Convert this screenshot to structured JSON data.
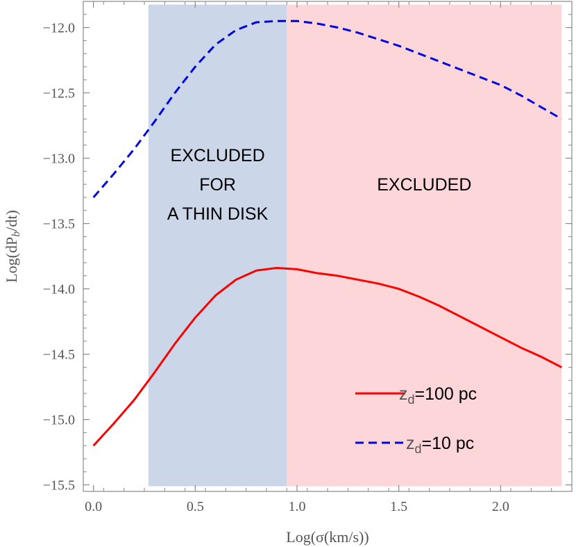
{
  "chart_data": {
    "type": "line",
    "xlabel": "Log(σ(km/s))",
    "ylabel": "Log(dP_b/dt)",
    "xlim": [
      -0.05,
      2.35
    ],
    "ylim": [
      -15.55,
      -11.8
    ],
    "xticks": [
      0.0,
      0.5,
      1.0,
      1.5,
      2.0
    ],
    "xtick_labels": [
      "0.0",
      "0.5",
      "1.0",
      "1.5",
      "2.0"
    ],
    "yticks": [
      -12.0,
      -12.5,
      -13.0,
      -13.5,
      -14.0,
      -14.5,
      -15.0,
      -15.5
    ],
    "ytick_labels": [
      "−12.0",
      "−12.5",
      "−13.0",
      "−13.5",
      "−14.0",
      "−14.5",
      "−15.0",
      "−15.5"
    ],
    "grid": false,
    "legend_position": "bottom-right",
    "regions": [
      {
        "x0": 0.27,
        "x1": 0.95,
        "color": "#cbd7e8",
        "label_lines": [
          "EXCLUDED",
          "FOR",
          "A THIN DISK"
        ]
      },
      {
        "x0": 0.95,
        "x1": 2.3,
        "color": "#fdd6d9",
        "label_lines": [
          "EXCLUDED"
        ]
      }
    ],
    "series": [
      {
        "name": "z_d=100 pc",
        "name_main": "z",
        "name_sub": "d",
        "name_rest": "=100 pc",
        "color": "#ff0000",
        "style": "solid",
        "x": [
          0.0,
          0.1,
          0.2,
          0.3,
          0.4,
          0.5,
          0.6,
          0.7,
          0.8,
          0.9,
          1.0,
          1.1,
          1.2,
          1.3,
          1.4,
          1.5,
          1.6,
          1.7,
          1.8,
          1.9,
          2.0,
          2.1,
          2.2,
          2.3
        ],
        "y": [
          -15.2,
          -15.03,
          -14.85,
          -14.64,
          -14.42,
          -14.22,
          -14.05,
          -13.93,
          -13.86,
          -13.84,
          -13.85,
          -13.88,
          -13.9,
          -13.93,
          -13.96,
          -14.0,
          -14.06,
          -14.13,
          -14.21,
          -14.29,
          -14.37,
          -14.45,
          -14.52,
          -14.6
        ]
      },
      {
        "name": "z_d=10 pc",
        "name_main": "z",
        "name_sub": "d",
        "name_rest": "=10 pc",
        "color": "#0000e0",
        "style": "dashed",
        "x": [
          0.0,
          0.1,
          0.2,
          0.3,
          0.4,
          0.5,
          0.6,
          0.7,
          0.8,
          0.9,
          1.0,
          1.1,
          1.2,
          1.3,
          1.4,
          1.5,
          1.6,
          1.7,
          1.8,
          1.9,
          2.0,
          2.1,
          2.2,
          2.3
        ],
        "y": [
          -13.3,
          -13.12,
          -12.93,
          -12.72,
          -12.5,
          -12.3,
          -12.13,
          -12.02,
          -11.96,
          -11.95,
          -11.95,
          -11.97,
          -12.0,
          -12.04,
          -12.09,
          -12.14,
          -12.2,
          -12.26,
          -12.32,
          -12.38,
          -12.44,
          -12.52,
          -12.61,
          -12.7
        ]
      }
    ]
  }
}
